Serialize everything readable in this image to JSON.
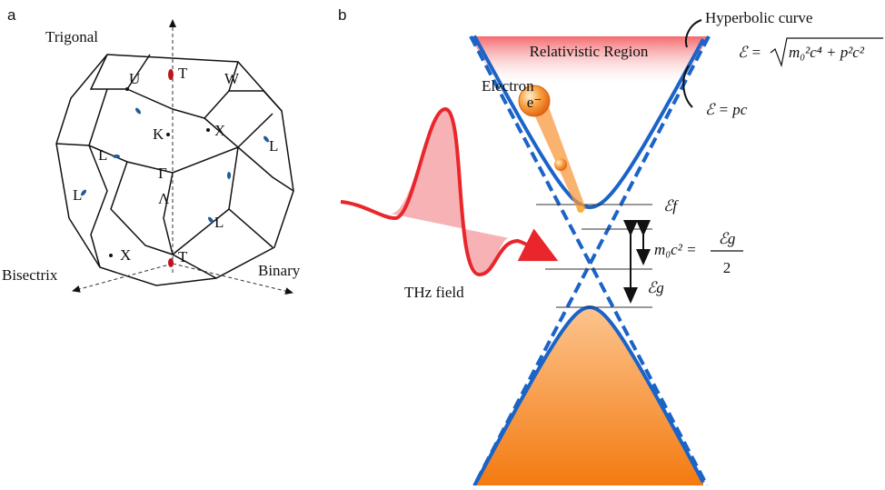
{
  "panel_a": {
    "label": "a",
    "axes": {
      "trigonal": "Trigonal",
      "bisectrix": "Bisectrix",
      "binary": "Binary"
    },
    "points": [
      "U",
      "T",
      "W",
      "K",
      "X",
      "L",
      "L",
      "Γ",
      "Λ",
      "L",
      "L",
      "X",
      "T"
    ]
  },
  "panel_b": {
    "label": "b",
    "region": "Relativistic Region",
    "hyperbolic_curve": "Hyperbolic curve",
    "hyperbolic_eq_lhs": "ℰ =",
    "hyperbolic_eq_radicand": "m₀²c⁴ + p²c²",
    "linear_eq": "ℰ = pc",
    "electron": "Electron",
    "electron_symbol": "e⁻",
    "thz_field": "THz field",
    "fermi_level": "ℰf",
    "gap_eq_lhs": "m₀c² =",
    "gap_eq_numerator": "ℰg",
    "gap_eq_denominator": "2",
    "gap": "ℰg"
  }
}
